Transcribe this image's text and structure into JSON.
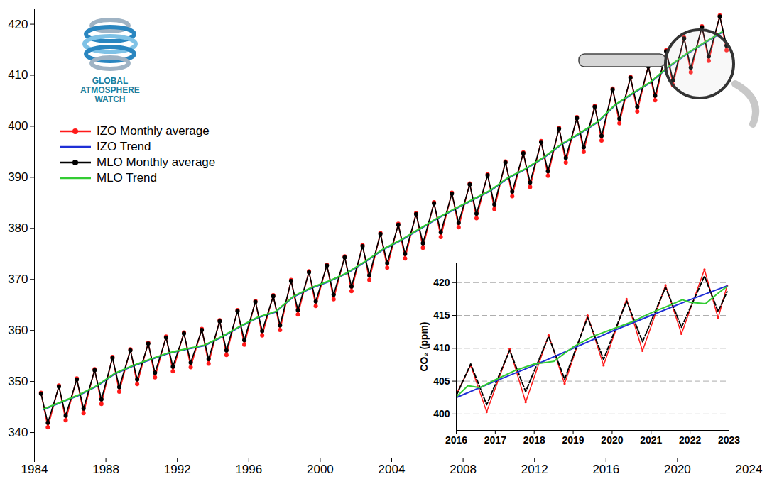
{
  "chart_data": [
    {
      "type": "line",
      "xlim": [
        1984,
        2024
      ],
      "xticks": [
        1984,
        1988,
        1992,
        1996,
        2000,
        2004,
        2008,
        2012,
        2016,
        2020,
        2024
      ],
      "ylim": [
        335,
        423
      ],
      "yticks": [
        340,
        350,
        360,
        370,
        380,
        390,
        400,
        410,
        420
      ],
      "legend": "upper left",
      "annotations": [
        "GLOBAL",
        "ATMOSPHERE",
        "WATCH"
      ],
      "series": [
        {
          "name": "IZO Monthly average",
          "color": "#ff1a1a",
          "marker": "circle",
          "x": [
            1984.37,
            1984.75,
            1985.37,
            1985.75,
            1986.37,
            1986.75,
            1987.37,
            1987.75,
            1988.37,
            1988.75,
            1989.37,
            1989.75,
            1990.37,
            1990.75,
            1991.37,
            1991.75,
            1992.37,
            1992.75,
            1993.37,
            1993.75,
            1994.37,
            1994.75,
            1995.37,
            1995.75,
            1996.37,
            1996.75,
            1997.37,
            1997.75,
            1998.37,
            1998.75,
            1999.37,
            1999.75,
            2000.37,
            2000.75,
            2001.37,
            2001.75,
            2002.37,
            2002.75,
            2003.37,
            2003.75,
            2004.37,
            2004.75,
            2005.37,
            2005.75,
            2006.37,
            2006.75,
            2007.37,
            2007.75,
            2008.37,
            2008.75,
            2009.37,
            2009.75,
            2010.37,
            2010.75,
            2011.37,
            2011.75,
            2012.37,
            2012.75,
            2013.37,
            2013.75,
            2014.37,
            2014.75,
            2015.37,
            2015.75,
            2016.37,
            2016.75,
            2017.37,
            2017.75,
            2018.37,
            2018.75,
            2019.37,
            2019.75,
            2020.37,
            2020.75,
            2021.37,
            2021.75,
            2022.37,
            2022.75
          ],
          "values": [
            347.8,
            341.0,
            349.2,
            342.4,
            350.6,
            343.8,
            352.4,
            345.6,
            354.8,
            348.0,
            356.3,
            349.5,
            357.6,
            350.8,
            358.8,
            352.0,
            359.6,
            352.8,
            360.3,
            353.5,
            362.0,
            355.2,
            364.0,
            357.2,
            365.8,
            359.0,
            366.9,
            360.1,
            369.9,
            363.1,
            371.6,
            364.8,
            372.9,
            366.1,
            374.5,
            367.7,
            376.7,
            369.9,
            379.1,
            372.3,
            380.9,
            374.1,
            383.0,
            376.2,
            385.1,
            378.3,
            387.0,
            380.2,
            388.8,
            382.0,
            390.6,
            383.8,
            393.1,
            386.3,
            394.9,
            388.1,
            397.1,
            390.3,
            399.7,
            392.9,
            401.8,
            395.0,
            404.0,
            397.2,
            407.4,
            400.6,
            409.7,
            402.9,
            411.9,
            405.1,
            414.9,
            408.1,
            417.4,
            410.6,
            419.6,
            412.8,
            421.7,
            414.9
          ]
        },
        {
          "name": "IZO Trend",
          "color": "#1f2fd6",
          "x": [
            1984.5,
            1985.5,
            1986.5,
            1987.5,
            1988.5,
            1989.5,
            1990.5,
            1991.5,
            1992.5,
            1993.5,
            1994.5,
            1995.5,
            1996.5,
            1997.5,
            1998.5,
            1999.5,
            2000.5,
            2001.5,
            2002.5,
            2003.5,
            2004.5,
            2005.5,
            2006.5,
            2007.5,
            2008.5,
            2009.5,
            2010.5,
            2011.5,
            2012.5,
            2013.5,
            2014.5,
            2015.5,
            2016.5,
            2017.5,
            2018.5,
            2019.5,
            2020.5,
            2021.5,
            2022.5
          ],
          "values": [
            344.5,
            345.9,
            347.3,
            349.1,
            351.5,
            353.0,
            354.3,
            355.5,
            356.3,
            357.0,
            358.7,
            360.7,
            362.5,
            363.6,
            366.6,
            368.3,
            369.6,
            371.2,
            373.4,
            375.8,
            377.6,
            379.7,
            381.8,
            383.7,
            385.5,
            387.3,
            389.8,
            391.6,
            393.8,
            396.4,
            398.5,
            400.7,
            404.1,
            406.4,
            408.6,
            411.6,
            414.1,
            416.3,
            418.4
          ]
        },
        {
          "name": "MLO Monthly average",
          "color": "#000000",
          "marker": "circle",
          "x": [
            1984.37,
            1984.75,
            1985.37,
            1985.75,
            1986.37,
            1986.75,
            1987.37,
            1987.75,
            1988.37,
            1988.75,
            1989.37,
            1989.75,
            1990.37,
            1990.75,
            1991.37,
            1991.75,
            1992.37,
            1992.75,
            1993.37,
            1993.75,
            1994.37,
            1994.75,
            1995.37,
            1995.75,
            1996.37,
            1996.75,
            1997.37,
            1997.75,
            1998.37,
            1998.75,
            1999.37,
            1999.75,
            2000.37,
            2000.75,
            2001.37,
            2001.75,
            2002.37,
            2002.75,
            2003.37,
            2003.75,
            2004.37,
            2004.75,
            2005.37,
            2005.75,
            2006.37,
            2006.75,
            2007.37,
            2007.75,
            2008.37,
            2008.75,
            2009.37,
            2009.75,
            2010.37,
            2010.75,
            2011.37,
            2011.75,
            2012.37,
            2012.75,
            2013.37,
            2013.75,
            2014.37,
            2014.75,
            2015.37,
            2015.75,
            2016.37,
            2016.75,
            2017.37,
            2017.75,
            2018.37,
            2018.75,
            2019.37,
            2019.75,
            2020.37,
            2020.75,
            2021.37,
            2021.75,
            2022.37,
            2022.75
          ],
          "values": [
            347.6,
            341.9,
            349.0,
            343.3,
            350.4,
            344.7,
            352.2,
            346.5,
            354.6,
            348.9,
            356.1,
            350.4,
            357.4,
            351.7,
            358.6,
            352.9,
            359.4,
            353.7,
            360.1,
            354.4,
            361.8,
            356.1,
            363.8,
            358.1,
            365.6,
            359.9,
            366.7,
            361.0,
            369.7,
            364.0,
            371.4,
            365.7,
            372.7,
            367.0,
            374.3,
            368.6,
            376.5,
            370.8,
            378.9,
            373.2,
            380.7,
            375.0,
            382.8,
            377.1,
            384.9,
            379.2,
            386.8,
            381.1,
            388.6,
            382.9,
            390.4,
            384.7,
            392.9,
            387.2,
            394.7,
            389.0,
            396.9,
            391.2,
            399.5,
            393.8,
            401.6,
            395.9,
            403.8,
            398.1,
            407.2,
            401.5,
            409.5,
            403.8,
            411.7,
            406.0,
            414.7,
            409.0,
            417.2,
            411.5,
            419.4,
            413.7,
            421.5,
            415.8
          ]
        },
        {
          "name": "MLO Trend",
          "color": "#33cc33",
          "x": [
            1984.5,
            1985.5,
            1986.5,
            1987.5,
            1988.5,
            1989.5,
            1990.5,
            1991.5,
            1992.5,
            1993.5,
            1994.5,
            1995.5,
            1996.5,
            1997.5,
            1998.5,
            1999.5,
            2000.5,
            2001.5,
            2002.5,
            2003.5,
            2004.5,
            2005.5,
            2006.5,
            2007.5,
            2008.5,
            2009.5,
            2010.5,
            2011.5,
            2012.5,
            2013.5,
            2014.5,
            2015.5,
            2016.5,
            2017.5,
            2018.5,
            2019.5,
            2020.5,
            2021.5,
            2022.5
          ],
          "values": [
            344.6,
            346.0,
            347.4,
            349.2,
            351.6,
            353.1,
            354.4,
            355.6,
            356.4,
            357.1,
            358.8,
            360.8,
            362.6,
            363.7,
            366.7,
            368.4,
            369.7,
            371.3,
            373.5,
            375.9,
            377.7,
            379.8,
            381.9,
            383.8,
            385.6,
            387.4,
            389.9,
            391.7,
            393.9,
            396.5,
            398.6,
            400.8,
            404.2,
            406.5,
            408.7,
            411.7,
            414.2,
            416.4,
            418.5
          ]
        }
      ]
    },
    {
      "type": "line",
      "ylabel": "CO₂ (ppm)",
      "xlim": [
        2016,
        2023
      ],
      "xticks": [
        2016,
        2017,
        2018,
        2019,
        2020,
        2021,
        2022,
        2023
      ],
      "ylim": [
        397.5,
        423
      ],
      "yticks": [
        400,
        405,
        410,
        415,
        420
      ],
      "grid": true,
      "series": [
        {
          "color": "#ff1a1a",
          "marker": "circle",
          "x": [
            2016.0,
            2016.37,
            2016.78,
            2017.37,
            2017.78,
            2018.37,
            2018.78,
            2019.37,
            2019.78,
            2020.37,
            2020.78,
            2021.37,
            2021.78,
            2022.37,
            2022.72,
            2022.95
          ],
          "values": [
            403.0,
            407.4,
            400.3,
            409.9,
            401.8,
            412.0,
            404.6,
            415.0,
            407.4,
            417.5,
            409.6,
            419.6,
            412.2,
            422.0,
            414.6,
            419.5
          ]
        },
        {
          "color": "#000000",
          "line_style": "dashed",
          "x": [
            2016.0,
            2016.37,
            2016.78,
            2017.37,
            2017.78,
            2018.37,
            2018.78,
            2019.37,
            2019.78,
            2020.37,
            2020.78,
            2021.37,
            2021.78,
            2022.37,
            2022.72,
            2022.95
          ],
          "values": [
            402.8,
            407.6,
            401.4,
            409.7,
            403.4,
            411.8,
            405.3,
            414.7,
            408.3,
            417.2,
            411.0,
            419.3,
            413.2,
            421.0,
            415.6,
            418.6
          ]
        },
        {
          "color": "#1f2fd6",
          "x": [
            2016.0,
            2017.0,
            2018.0,
            2019.0,
            2020.0,
            2021.0,
            2022.0,
            2022.95
          ],
          "values": [
            402.5,
            405.0,
            407.4,
            410.0,
            412.6,
            415.0,
            417.4,
            419.5
          ]
        },
        {
          "color": "#33cc33",
          "x": [
            2016.0,
            2016.3,
            2016.6,
            2017.0,
            2017.5,
            2018.0,
            2018.5,
            2019.0,
            2019.5,
            2020.0,
            2020.5,
            2021.0,
            2021.5,
            2021.8,
            2022.0,
            2022.4,
            2022.7,
            2022.95
          ],
          "values": [
            402.6,
            404.3,
            404.0,
            405.2,
            406.6,
            407.6,
            408.0,
            410.2,
            411.8,
            412.9,
            414.0,
            415.4,
            416.6,
            417.4,
            417.0,
            416.8,
            418.3,
            419.4
          ]
        }
      ]
    }
  ]
}
